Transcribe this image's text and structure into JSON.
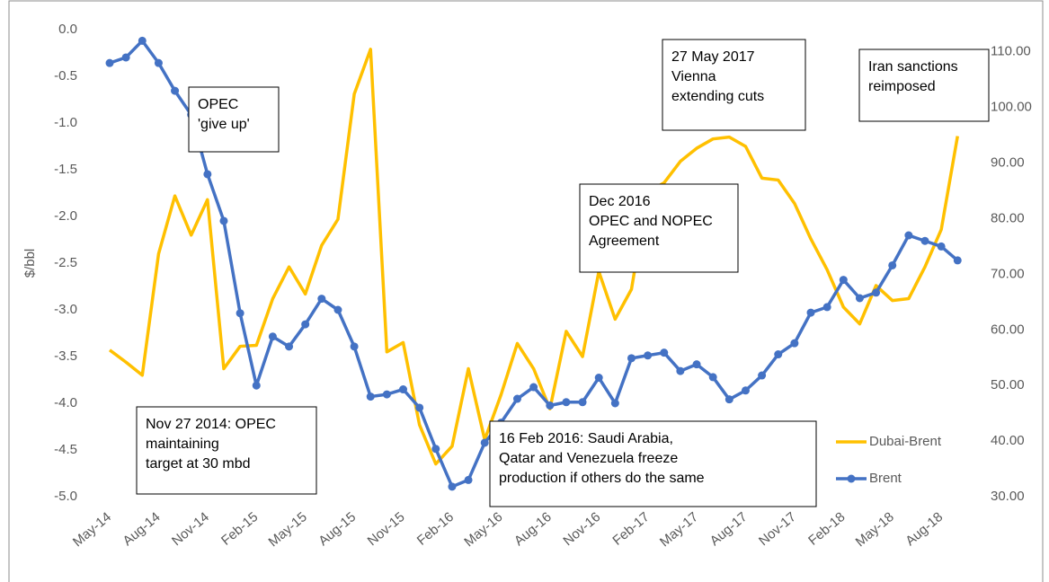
{
  "chart_data": {
    "type": "line",
    "y_label": "$/bbl",
    "categories": [
      "May-14",
      null,
      null,
      "Aug-14",
      null,
      null,
      "Nov-14",
      null,
      null,
      "Feb-15",
      null,
      null,
      "May-15",
      null,
      null,
      "Aug-15",
      null,
      null,
      "Nov-15",
      null,
      null,
      "Feb-16",
      null,
      null,
      "May-16",
      null,
      null,
      "Aug-16",
      null,
      null,
      "Nov-16",
      null,
      null,
      "Feb-17",
      null,
      null,
      "May-17",
      null,
      null,
      "Aug-17",
      null,
      null,
      "Nov-17",
      null,
      null,
      "Feb-18",
      null,
      null,
      "May-18",
      null,
      null,
      "Aug-18",
      null
    ],
    "series": [
      {
        "name": "Dubai-Brent",
        "color": "#FFC000",
        "axis": "y",
        "values": [
          -3.43,
          -3.56,
          -3.7,
          -2.4,
          -1.78,
          -2.2,
          -1.82,
          -3.63,
          -3.39,
          -3.38,
          -2.88,
          -2.54,
          -2.83,
          -2.31,
          -2.03,
          -0.69,
          -0.21,
          -3.45,
          -3.35,
          -4.23,
          -4.65,
          -4.46,
          -3.63,
          -4.39,
          -3.91,
          -3.36,
          -3.63,
          -4.06,
          -3.23,
          -3.5,
          -2.59,
          -3.1,
          -2.78,
          -1.74,
          -1.64,
          -1.41,
          -1.27,
          -1.17,
          -1.15,
          -1.25,
          -1.59,
          -1.61,
          -1.86,
          -2.24,
          -2.57,
          -2.97,
          -3.15,
          -2.74,
          -2.9,
          -2.88,
          -2.54,
          -2.14,
          -1.14
        ]
      },
      {
        "name": "Brent",
        "color": "#4472C4",
        "axis": "y2",
        "values": [
          108,
          109,
          112,
          108,
          103,
          98.7,
          88,
          79.6,
          63,
          50,
          58.8,
          57,
          61,
          65.6,
          63.6,
          57,
          48,
          48.4,
          49.3,
          46,
          38.6,
          31.8,
          33,
          39.7,
          43.3,
          47.6,
          49.7,
          46.4,
          47,
          47,
          51.4,
          46.8,
          54.9,
          55.4,
          55.9,
          52.6,
          53.8,
          51.5,
          47.5,
          49.1,
          51.8,
          55.6,
          57.6,
          63.1,
          64.1,
          69,
          65.7,
          66.7,
          71.6,
          77,
          76,
          75,
          72.5
        ]
      }
    ],
    "ylim": [
      -5,
      0
    ],
    "yticks": [
      {
        "value": 0,
        "label": "0.0"
      },
      -0.5,
      {
        "value": -1,
        "label": "-1.0"
      },
      -1.5,
      {
        "value": -2,
        "label": "-2.0"
      },
      -2.5,
      {
        "value": -3,
        "label": "-3.0"
      },
      -3.5,
      {
        "value": -4,
        "label": "-4.0"
      },
      -4.5,
      {
        "value": -5,
        "label": "-5.0"
      }
    ],
    "y2lim": [
      30,
      114
    ],
    "y2ticks": [
      {
        "value": 30,
        "label": "30.00"
      },
      {
        "value": 40,
        "label": "40.00"
      },
      {
        "value": 50,
        "label": "50.00"
      },
      {
        "value": 60,
        "label": "60.00"
      },
      {
        "value": 70,
        "label": "70.00"
      },
      {
        "value": 80,
        "label": "80.00"
      },
      {
        "value": 90,
        "label": "90.00"
      },
      {
        "value": 100,
        "label": "100.00"
      },
      {
        "value": 110,
        "label": "110.00"
      }
    ],
    "grid": false,
    "legend": "right",
    "annotations": [
      {
        "lines": [
          "OPEC",
          "'give up'"
        ]
      },
      {
        "lines": [
          "Nov 27 2014:  OPEC",
          "maintaining",
          "target at 30 mbd"
        ]
      },
      {
        "lines": [
          "16 Feb 2016:  Saudi Arabia,",
          "Qatar and Venezuela freeze",
          "production if others do the same"
        ]
      },
      {
        "lines": [
          "Dec 2016",
          "OPEC and NOPEC",
          "Agreement"
        ]
      },
      {
        "lines": [
          "27 May 2017",
          "Vienna",
          "extending cuts"
        ]
      },
      {
        "lines": [
          "Iran sanctions",
          "reimposed"
        ]
      }
    ]
  }
}
